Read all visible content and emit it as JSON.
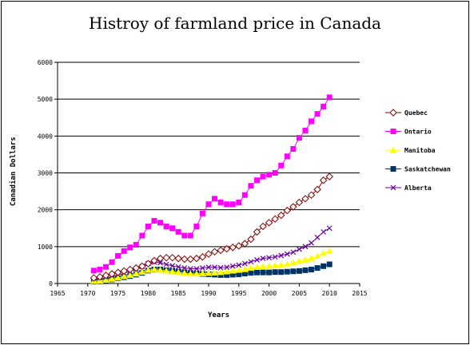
{
  "chart_data": {
    "type": "line",
    "title": "Histroy of farmland price in Canada",
    "xlabel": "Years",
    "ylabel": "Canadian Dollars",
    "xlim": [
      1965,
      2015
    ],
    "ylim": [
      0,
      6000
    ],
    "xticks": [
      1965,
      1970,
      1975,
      1980,
      1985,
      1990,
      1995,
      2000,
      2005,
      2010,
      2015
    ],
    "yticks": [
      0,
      1000,
      2000,
      3000,
      4000,
      5000,
      6000
    ],
    "grid": "horizontal",
    "legend_position": "right",
    "x": [
      1971,
      1972,
      1973,
      1974,
      1975,
      1976,
      1977,
      1978,
      1979,
      1980,
      1981,
      1982,
      1983,
      1984,
      1985,
      1986,
      1987,
      1988,
      1989,
      1990,
      1991,
      1992,
      1993,
      1994,
      1995,
      1996,
      1997,
      1998,
      1999,
      2000,
      2001,
      2002,
      2003,
      2004,
      2005,
      2006,
      2007,
      2008,
      2009,
      2010
    ],
    "series": [
      {
        "name": "Quebec",
        "color": "#800000",
        "marker": "diamond",
        "values": [
          150,
          180,
          220,
          260,
          300,
          340,
          380,
          420,
          470,
          540,
          620,
          680,
          700,
          700,
          680,
          660,
          660,
          680,
          720,
          800,
          860,
          900,
          940,
          980,
          1020,
          1080,
          1200,
          1400,
          1550,
          1650,
          1750,
          1850,
          1980,
          2080,
          2200,
          2300,
          2400,
          2550,
          2800,
          2900
        ]
      },
      {
        "name": "Ontario",
        "color": "#ff00ff",
        "marker": "square",
        "values": [
          350,
          380,
          450,
          580,
          750,
          880,
          980,
          1050,
          1300,
          1550,
          1700,
          1650,
          1550,
          1500,
          1400,
          1300,
          1300,
          1550,
          1900,
          2150,
          2300,
          2200,
          2150,
          2150,
          2200,
          2400,
          2650,
          2800,
          2900,
          2950,
          3000,
          3200,
          3450,
          3650,
          3950,
          4150,
          4400,
          4600,
          4800,
          5050
        ]
      },
      {
        "name": "Manitoba",
        "color": "#ffff00",
        "marker": "triangle",
        "values": [
          60,
          70,
          90,
          120,
          150,
          190,
          220,
          260,
          310,
          360,
          380,
          360,
          340,
          320,
          300,
          280,
          260,
          260,
          270,
          280,
          290,
          300,
          320,
          340,
          360,
          380,
          420,
          440,
          460,
          470,
          480,
          500,
          520,
          560,
          600,
          640,
          680,
          740,
          820,
          880
        ]
      },
      {
        "name": "Saskatchewan",
        "color": "#003366",
        "marker": "square",
        "values": [
          50,
          60,
          80,
          110,
          140,
          170,
          200,
          240,
          290,
          350,
          380,
          380,
          360,
          340,
          320,
          300,
          280,
          270,
          260,
          250,
          240,
          230,
          230,
          240,
          250,
          270,
          290,
          300,
          300,
          300,
          310,
          310,
          320,
          330,
          340,
          360,
          380,
          420,
          470,
          520
        ]
      },
      {
        "name": "Alberta",
        "color": "#660099",
        "marker": "x",
        "values": [
          100,
          120,
          150,
          190,
          230,
          280,
          330,
          390,
          460,
          540,
          580,
          560,
          520,
          480,
          450,
          420,
          400,
          400,
          420,
          440,
          440,
          430,
          440,
          470,
          500,
          540,
          590,
          640,
          680,
          700,
          720,
          760,
          800,
          850,
          930,
          1000,
          1100,
          1250,
          1400,
          1500
        ]
      }
    ]
  }
}
